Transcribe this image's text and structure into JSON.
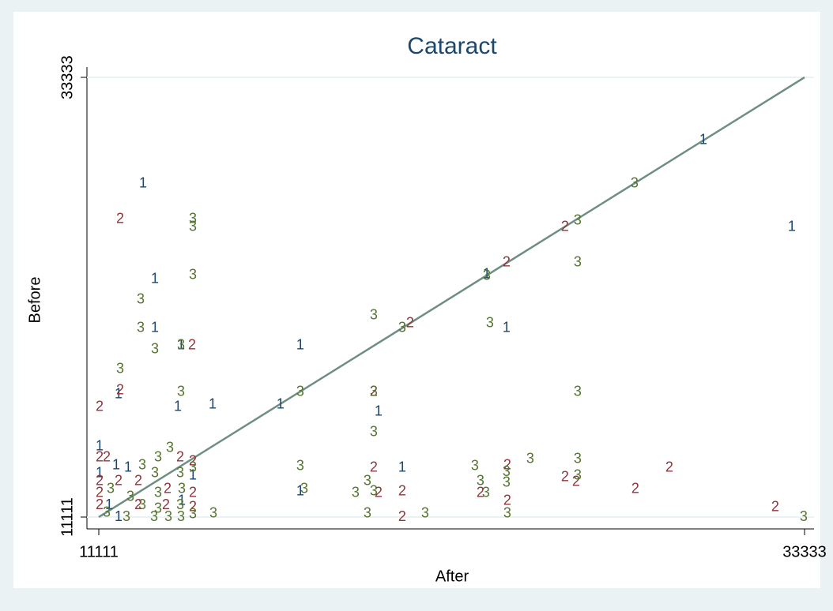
{
  "chart_data": {
    "type": "scatter",
    "title": "Cataract",
    "x_label": "After",
    "y_label": "Before",
    "xlim": [
      11111,
      33333
    ],
    "ylim": [
      11111,
      33333
    ],
    "xticks": [
      11111,
      33333
    ],
    "yticks": [
      11111,
      33333
    ],
    "grid": true,
    "fit_line": {
      "x": [
        11111,
        33333
      ],
      "y": [
        11111,
        33333
      ],
      "color": "#6e8e84"
    },
    "series": [
      {
        "marker_label": "1",
        "color": "#1a476f",
        "x": [
          12504,
          12878,
          12878,
          17455,
          13699,
          13599,
          14694,
          16833,
          19918,
          23949,
          30145,
          32931,
          11136,
          20665,
          17455,
          14072,
          23327,
          11136,
          11658,
          12032,
          11434,
          11733,
          13723,
          11733
        ],
        "values": [
          27949,
          23121,
          20647,
          19769,
          19769,
          16657,
          16777,
          16777,
          16418,
          20647,
          30143,
          25754,
          14662,
          13585,
          12388,
          13186,
          23360,
          13306,
          13705,
          13585,
          11709,
          11111,
          11909,
          17296
        ]
      },
      {
        "marker_label": "2",
        "color": "#90353b",
        "x": [
          11783,
          11136,
          11783,
          14047,
          19769,
          20914,
          23949,
          25791,
          23974,
          29075,
          26139,
          25791,
          28005,
          32409,
          20665,
          20665,
          19769,
          19918,
          23128,
          23974,
          11136,
          11360,
          11136,
          11733,
          12355,
          13674,
          14072,
          13276,
          14072,
          14072,
          11136,
          12355,
          13226,
          11136
        ],
        "values": [
          26153,
          16657,
          17495,
          19769,
          17415,
          20886,
          23959,
          25754,
          13705,
          13585,
          12867,
          13106,
          12508,
          11590,
          11111,
          12388,
          13585,
          12308,
          12308,
          11909,
          14104,
          14104,
          12907,
          12907,
          12907,
          14104,
          13904,
          12508,
          12308,
          11590,
          11709,
          11709,
          11709,
          12308
        ]
      },
      {
        "marker_label": "3",
        "color": "#55752f",
        "x": [
          14072,
          14072,
          14072,
          12430,
          12430,
          12878,
          13699,
          11783,
          13699,
          17455,
          19769,
          19769,
          20665,
          23427,
          19769,
          26188,
          27980,
          26188,
          26188,
          23327,
          17455,
          17580,
          19197,
          19570,
          19769,
          19570,
          21386,
          22954,
          23128,
          23302,
          23949,
          23974,
          23949,
          24696,
          26188,
          26188,
          33304,
          14719,
          13350,
          12977,
          12480,
          12878,
          13674,
          14072,
          13723,
          12977,
          12106,
          11484,
          11982,
          12853,
          13300,
          13699,
          14072,
          12480,
          11360,
          12977,
          13674
        ],
        "values": [
          26153,
          25754,
          23320,
          22083,
          20647,
          19570,
          19769,
          18572,
          17415,
          17415,
          21285,
          17415,
          20647,
          20886,
          15380,
          26073,
          27949,
          23959,
          17415,
          23280,
          13665,
          12508,
          12308,
          12907,
          12388,
          11271,
          11271,
          13665,
          12907,
          12308,
          12827,
          11271,
          13385,
          14024,
          14024,
          13186,
          11111,
          11271,
          14582,
          14104,
          13705,
          13306,
          13306,
          13585,
          12508,
          12308,
          12109,
          12508,
          11111,
          11111,
          11111,
          11111,
          11231,
          11709,
          11311,
          11510,
          11709
        ]
      }
    ]
  }
}
